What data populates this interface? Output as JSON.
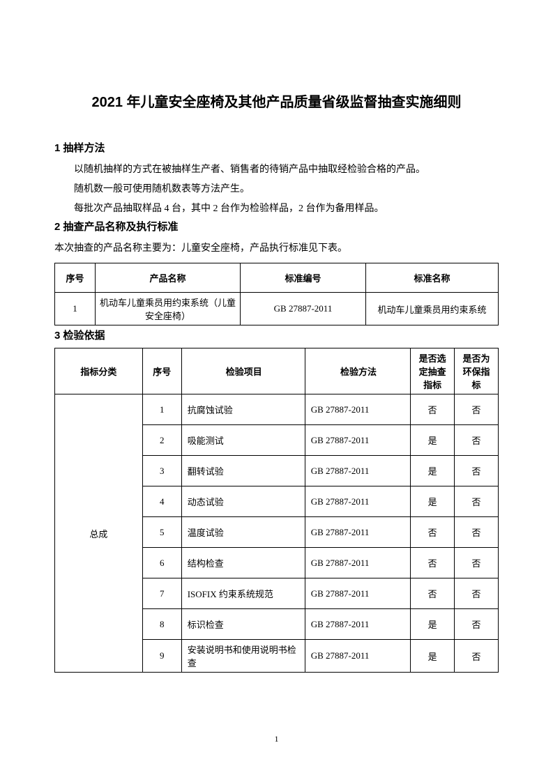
{
  "title": "2021 年儿童安全座椅及其他产品质量省级监督抽查实施细则",
  "section1": {
    "header": "1 抽样方法",
    "p1": "以随机抽样的方式在被抽样生产者、销售者的待销产品中抽取经检验合格的产品。",
    "p2": "随机数一般可使用随机数表等方法产生。",
    "p3": "每批次产品抽取样品 4 台，其中 2 台作为检验样品，2 台作为备用样品。"
  },
  "section2": {
    "header": "2 抽查产品名称及执行标准",
    "intro": "本次抽查的产品名称主要为：儿童安全座椅，产品执行标准见下表。",
    "columns": [
      "序号",
      "产品名称",
      "标准编号",
      "标准名称"
    ],
    "row": {
      "seq": "1",
      "name": "机动车儿童乘员用约束系统（儿童安全座椅）",
      "code": "GB 27887-2011",
      "std": "机动车儿童乘员用约束系统"
    }
  },
  "section3": {
    "header": "3 检验依据",
    "columns": [
      "指标分类",
      "序号",
      "检验项目",
      "检验方法",
      "是否选定抽查指标",
      "是否为环保指标"
    ],
    "category": "总成",
    "rows": [
      {
        "seq": "1",
        "item": "抗腐蚀试验",
        "method": "GB 27887-2011",
        "sel": "否",
        "env": "否"
      },
      {
        "seq": "2",
        "item": "吸能测试",
        "method": "GB 27887-2011",
        "sel": "是",
        "env": "否"
      },
      {
        "seq": "3",
        "item": "翻转试验",
        "method": "GB 27887-2011",
        "sel": "是",
        "env": "否"
      },
      {
        "seq": "4",
        "item": "动态试验",
        "method": "GB 27887-2011",
        "sel": "是",
        "env": "否"
      },
      {
        "seq": "5",
        "item": "温度试验",
        "method": "GB 27887-2011",
        "sel": "否",
        "env": "否"
      },
      {
        "seq": "6",
        "item": "结构检查",
        "method": "GB 27887-2011",
        "sel": "否",
        "env": "否"
      },
      {
        "seq": "7",
        "item": "ISOFIX 约束系统规范",
        "method": "GB 27887-2011",
        "sel": "否",
        "env": "否"
      },
      {
        "seq": "8",
        "item": "标识检查",
        "method": "GB 27887-2011",
        "sel": "是",
        "env": "否"
      },
      {
        "seq": "9",
        "item": "安装说明书和使用说明书检查",
        "method": "GB 27887-2011",
        "sel": "是",
        "env": "否"
      }
    ]
  },
  "pageNumber": "1"
}
